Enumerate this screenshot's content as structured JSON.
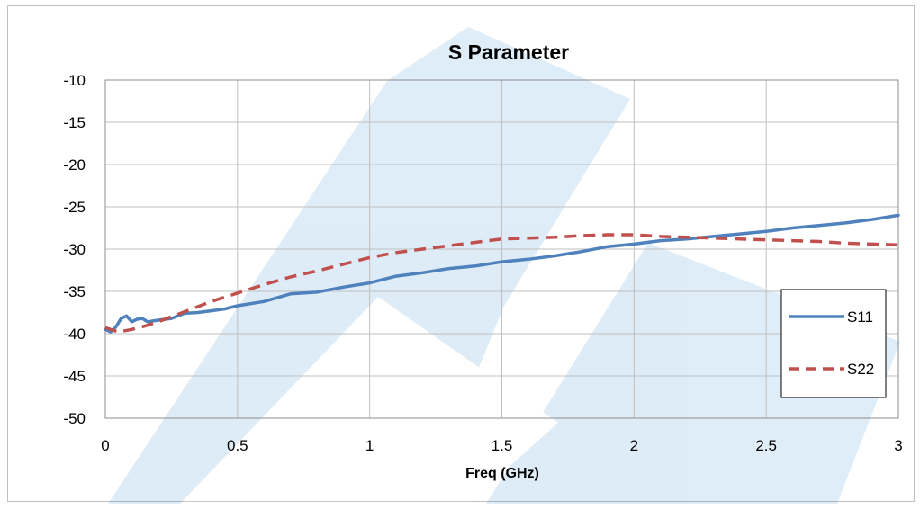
{
  "chart_data": {
    "type": "line",
    "title": "S Parameter",
    "xlabel": "Freq (GHz)",
    "ylabel": "",
    "xlim": [
      0,
      3
    ],
    "ylim": [
      -50,
      -10
    ],
    "x_ticks": [
      "0",
      "0.5",
      "1",
      "1.5",
      "2",
      "2.5",
      "3"
    ],
    "y_ticks": [
      "-10",
      "-15",
      "-20",
      "-25",
      "-30",
      "-35",
      "-40",
      "-45",
      "-50"
    ],
    "grid": true,
    "legend_position": "right",
    "series": [
      {
        "name": "S11",
        "color": "#4f81bd",
        "style": "solid",
        "x": [
          0,
          0.02,
          0.04,
          0.06,
          0.08,
          0.1,
          0.12,
          0.14,
          0.16,
          0.2,
          0.25,
          0.3,
          0.35,
          0.4,
          0.45,
          0.5,
          0.6,
          0.7,
          0.8,
          0.9,
          1.0,
          1.1,
          1.2,
          1.3,
          1.4,
          1.5,
          1.6,
          1.7,
          1.8,
          1.9,
          2.0,
          2.1,
          2.2,
          2.3,
          2.4,
          2.5,
          2.6,
          2.7,
          2.8,
          2.9,
          3.0
        ],
        "y": [
          -39.5,
          -39.8,
          -39.2,
          -38.2,
          -37.9,
          -38.6,
          -38.3,
          -38.2,
          -38.6,
          -38.4,
          -38.2,
          -37.6,
          -37.5,
          -37.3,
          -37.1,
          -36.7,
          -36.2,
          -35.3,
          -35.1,
          -34.5,
          -34.0,
          -33.2,
          -32.8,
          -32.3,
          -32.0,
          -31.5,
          -31.2,
          -30.8,
          -30.3,
          -29.7,
          -29.4,
          -29.0,
          -28.8,
          -28.5,
          -28.2,
          -27.9,
          -27.5,
          -27.2,
          -26.9,
          -26.5,
          -26.0
        ]
      },
      {
        "name": "S22",
        "color": "#c0504d",
        "style": "dashed",
        "x": [
          0,
          0.05,
          0.1,
          0.15,
          0.2,
          0.3,
          0.4,
          0.5,
          0.6,
          0.7,
          0.8,
          0.9,
          1.0,
          1.1,
          1.2,
          1.3,
          1.4,
          1.5,
          1.6,
          1.7,
          1.8,
          1.9,
          2.0,
          2.1,
          2.2,
          2.3,
          2.4,
          2.5,
          2.6,
          2.7,
          2.8,
          2.9,
          3.0
        ],
        "y": [
          -39.3,
          -39.8,
          -39.5,
          -39.1,
          -38.6,
          -37.4,
          -36.2,
          -35.2,
          -34.2,
          -33.3,
          -32.6,
          -31.8,
          -31.0,
          -30.4,
          -30.0,
          -29.6,
          -29.2,
          -28.8,
          -28.7,
          -28.6,
          -28.4,
          -28.3,
          -28.3,
          -28.5,
          -28.6,
          -28.7,
          -28.8,
          -28.9,
          -29.0,
          -29.1,
          -29.3,
          -29.4,
          -29.5
        ]
      }
    ]
  }
}
